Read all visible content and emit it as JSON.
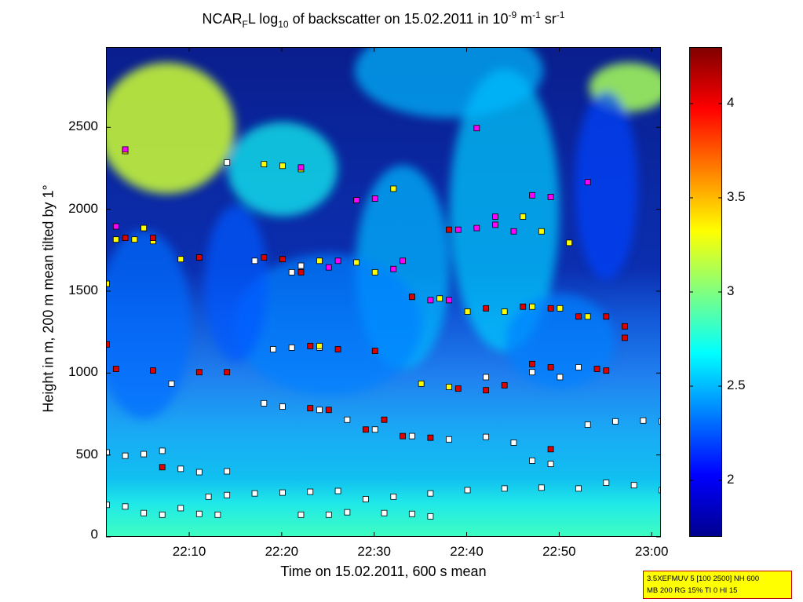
{
  "title": {
    "prefix": "NCAR",
    "sub1": "F",
    "mid1": "L log",
    "sub2": "10",
    "mid2": " of backscatter on 15.02.2011 in 10",
    "sup1": "-9",
    "mid3": " m",
    "sup2": "-1",
    "mid4": " sr",
    "sup3": "-1"
  },
  "info_box": {
    "line1": "3.5XEFMUV 5 [100 2500] NH 600",
    "line2": "MB 200 RG 15% TI 0 HI 15"
  },
  "colors": {
    "marker_white": "#ffffff",
    "marker_yellow": "#ffff00",
    "marker_red": "#dd0000",
    "marker_magenta": "#ff00ff",
    "marker_edge": "#000000"
  },
  "chart_data": {
    "type": "heatmap",
    "title": "NCAR_F L log_10 of backscatter on 15.02.2011 in 10^-9 m^-1 sr^-1",
    "xlabel": "Time on 15.02.2011, 600 s mean",
    "ylabel": "Height in m, 200 m mean tilted by 1°",
    "xlim": [
      "22:01",
      "23:01"
    ],
    "ylim": [
      0,
      2990
    ],
    "x_ticks": [
      "22:10",
      "22:20",
      "22:30",
      "22:40",
      "22:50",
      "23:00"
    ],
    "y_ticks": [
      0,
      500,
      1000,
      1500,
      2000,
      2500
    ],
    "colorbar": {
      "colormap": "jet",
      "range": [
        1.7,
        4.3
      ],
      "ticks": [
        2,
        2.5,
        3,
        3.5,
        4
      ],
      "tick_labels": [
        "2",
        "2.5",
        "3",
        "3.5",
        "4"
      ]
    },
    "grid": false,
    "background_field": [
      {
        "layer": "surface",
        "height": [
          0,
          250
        ],
        "value": 2.9
      },
      {
        "layer": "boundary",
        "height": [
          250,
          650
        ],
        "value": 2.55
      },
      {
        "layer": "mixed",
        "height": [
          650,
          1300
        ],
        "value": 2.3
      },
      {
        "layer": "clear_upper",
        "height": [
          1300,
          2990
        ],
        "value": 1.75
      },
      {
        "layer": "cloud_upper_left",
        "time": [
          "22:01",
          "22:14"
        ],
        "height": [
          2100,
          2900
        ],
        "value": 3.2
      },
      {
        "layer": "cloud_upper_right",
        "time": [
          "22:54",
          "23:01"
        ],
        "height": [
          2600,
          2900
        ],
        "value": 3.1
      }
    ],
    "series": [
      {
        "name": "",
        "marker": "white",
        "points": [
          [
            "22:01",
            200
          ],
          [
            "22:03",
            190
          ],
          [
            "22:05",
            150
          ],
          [
            "22:07",
            140
          ],
          [
            "22:09",
            180
          ],
          [
            "22:11",
            145
          ],
          [
            "22:13",
            140
          ],
          [
            "22:12",
            250
          ],
          [
            "22:14",
            260
          ],
          [
            "22:17",
            270
          ],
          [
            "22:20",
            275
          ],
          [
            "22:23",
            280
          ],
          [
            "22:26",
            285
          ],
          [
            "22:29",
            235
          ],
          [
            "22:32",
            250
          ],
          [
            "22:36",
            270
          ],
          [
            "22:40",
            290
          ],
          [
            "22:44",
            300
          ],
          [
            "22:48",
            305
          ],
          [
            "22:52",
            300
          ],
          [
            "22:55",
            335
          ],
          [
            "22:58",
            320
          ],
          [
            "23:01",
            290
          ],
          [
            "22:22",
            140
          ],
          [
            "22:25",
            140
          ],
          [
            "22:27",
            155
          ],
          [
            "22:31",
            150
          ],
          [
            "22:34",
            145
          ],
          [
            "22:36",
            130
          ],
          [
            "22:01",
            520
          ],
          [
            "22:03",
            500
          ],
          [
            "22:05",
            510
          ],
          [
            "22:07",
            530
          ],
          [
            "22:09",
            420
          ],
          [
            "22:11",
            400
          ],
          [
            "22:14",
            405
          ],
          [
            "22:18",
            820
          ],
          [
            "22:20",
            800
          ],
          [
            "22:24",
            780
          ],
          [
            "22:27",
            720
          ],
          [
            "22:30",
            660
          ],
          [
            "22:34",
            620
          ],
          [
            "22:38",
            600
          ],
          [
            "22:42",
            615
          ],
          [
            "22:45",
            580
          ],
          [
            "22:47",
            470
          ],
          [
            "22:49",
            450
          ],
          [
            "22:53",
            690
          ],
          [
            "22:56",
            710
          ],
          [
            "22:59",
            715
          ],
          [
            "23:01",
            710
          ],
          [
            "22:08",
            940
          ],
          [
            "22:42",
            980
          ],
          [
            "22:47",
            1010
          ],
          [
            "22:50",
            980
          ],
          [
            "22:52",
            1040
          ],
          [
            "22:19",
            1150
          ],
          [
            "22:21",
            1160
          ],
          [
            "22:24",
            1160
          ],
          [
            "22:17",
            1690
          ],
          [
            "22:22",
            1660
          ],
          [
            "22:21",
            1620
          ],
          [
            "22:14",
            2290
          ]
        ]
      },
      {
        "name": "",
        "marker": "yellow",
        "points": [
          [
            "22:01",
            1550
          ],
          [
            "22:02",
            1820
          ],
          [
            "22:04",
            1820
          ],
          [
            "22:06",
            1810
          ],
          [
            "22:09",
            1700
          ],
          [
            "22:11",
            1710
          ],
          [
            "22:18",
            2280
          ],
          [
            "22:20",
            2270
          ],
          [
            "22:22",
            2250
          ],
          [
            "22:24",
            1170
          ],
          [
            "22:28",
            1680
          ],
          [
            "22:30",
            1620
          ],
          [
            "22:32",
            2130
          ],
          [
            "22:34",
            1470
          ],
          [
            "22:37",
            1460
          ],
          [
            "22:40",
            1380
          ],
          [
            "22:44",
            1380
          ],
          [
            "22:47",
            1410
          ],
          [
            "22:50",
            1400
          ],
          [
            "22:53",
            1350
          ],
          [
            "22:35",
            940
          ],
          [
            "22:38",
            920
          ],
          [
            "22:46",
            1960
          ],
          [
            "22:48",
            1870
          ],
          [
            "22:51",
            1800
          ],
          [
            "22:03",
            2360
          ],
          [
            "22:05",
            1890
          ],
          [
            "22:24",
            1690
          ]
        ]
      },
      {
        "name": "",
        "marker": "red",
        "points": [
          [
            "22:01",
            1180
          ],
          [
            "22:02",
            1030
          ],
          [
            "22:06",
            1020
          ],
          [
            "22:07",
            430
          ],
          [
            "22:11",
            1010
          ],
          [
            "22:14",
            1010
          ],
          [
            "22:03",
            1830
          ],
          [
            "22:06",
            1830
          ],
          [
            "22:11",
            1710
          ],
          [
            "22:18",
            1710
          ],
          [
            "22:20",
            1700
          ],
          [
            "22:22",
            1620
          ],
          [
            "22:23",
            1170
          ],
          [
            "22:26",
            1150
          ],
          [
            "22:30",
            1140
          ],
          [
            "22:23",
            790
          ],
          [
            "22:25",
            780
          ],
          [
            "22:29",
            660
          ],
          [
            "22:31",
            720
          ],
          [
            "22:33",
            620
          ],
          [
            "22:36",
            610
          ],
          [
            "22:39",
            910
          ],
          [
            "22:42",
            900
          ],
          [
            "22:44",
            930
          ],
          [
            "22:46",
            1410
          ],
          [
            "22:49",
            1400
          ],
          [
            "22:52",
            1350
          ],
          [
            "22:55",
            1350
          ],
          [
            "22:57",
            1290
          ],
          [
            "22:57",
            1220
          ],
          [
            "22:47",
            1060
          ],
          [
            "22:49",
            1040
          ],
          [
            "22:54",
            1030
          ],
          [
            "22:49",
            540
          ],
          [
            "22:34",
            1470
          ],
          [
            "22:42",
            1400
          ],
          [
            "22:55",
            1020
          ],
          [
            "22:38",
            1880
          ]
        ]
      },
      {
        "name": "",
        "marker": "magenta",
        "points": [
          [
            "22:03",
            2370
          ],
          [
            "22:02",
            1900
          ],
          [
            "22:22",
            2260
          ],
          [
            "22:28",
            2060
          ],
          [
            "22:30",
            2070
          ],
          [
            "22:26",
            1690
          ],
          [
            "22:33",
            1690
          ],
          [
            "22:36",
            1450
          ],
          [
            "22:38",
            1450
          ],
          [
            "22:39",
            1880
          ],
          [
            "22:41",
            1890
          ],
          [
            "22:43",
            1910
          ],
          [
            "22:45",
            1870
          ],
          [
            "22:47",
            2090
          ],
          [
            "22:49",
            2080
          ],
          [
            "22:41",
            2500
          ],
          [
            "22:53",
            2170
          ],
          [
            "22:43",
            1960
          ],
          [
            "22:32",
            1640
          ],
          [
            "22:25",
            1650
          ]
        ]
      }
    ]
  }
}
